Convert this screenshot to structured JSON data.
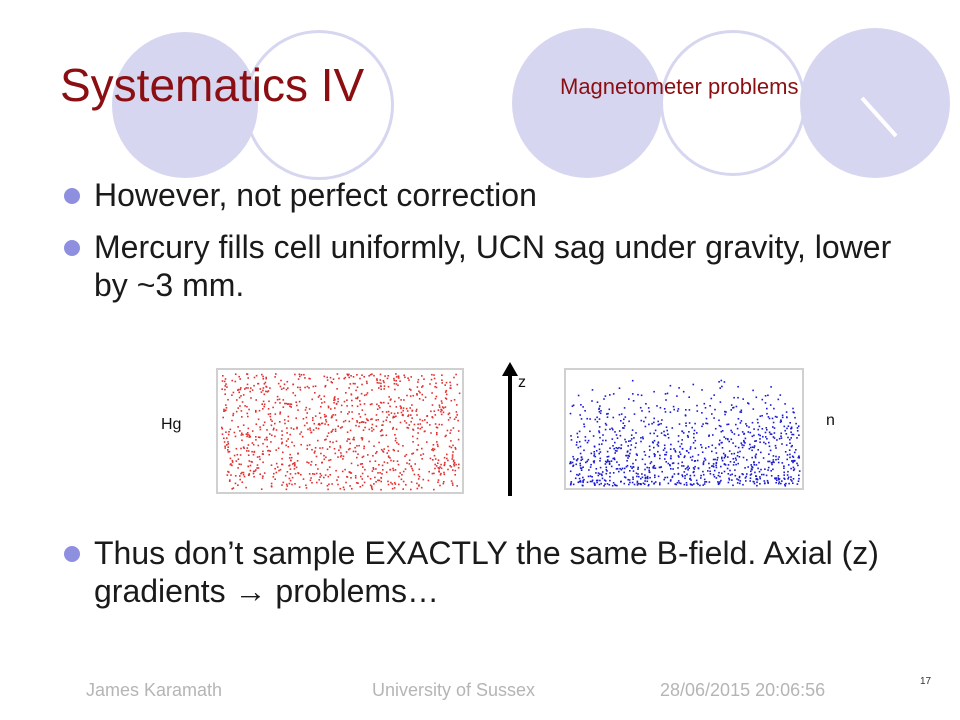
{
  "slide": {
    "title": "Systematics IV",
    "subtitle": "Magnetometer problems",
    "bullets": [
      "However, not perfect correction",
      "Mercury fills cell uniformly, UCN sag under gravity, lower by ~3 mm."
    ],
    "bullet_last": "Thus don’t sample EXACTLY the same B-field. Axial (z) gradients → problems…",
    "figure": {
      "left_label": "Hg",
      "axis_label": "z",
      "right_label": "n",
      "hg_color": "#e03030",
      "n_color": "#1a1ad0"
    },
    "footer": {
      "author": "James Karamath",
      "institution": "University of Sussex",
      "datetime": "28/06/2015 20:06:56",
      "page": "17"
    }
  },
  "colors": {
    "title": "#8b0f12",
    "bullet_dot": "#8f8fe0",
    "circle_fill": "#d6d6f0",
    "circle_stroke": "#b9b9dc"
  }
}
